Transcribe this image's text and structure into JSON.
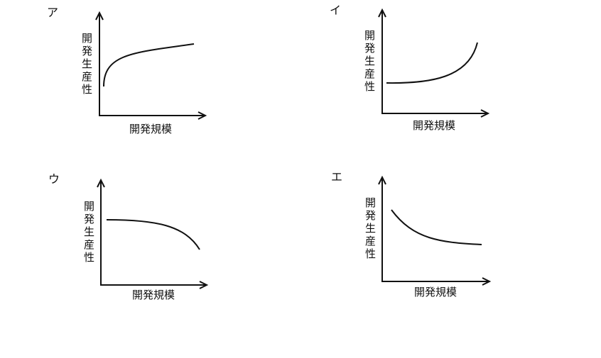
{
  "panels": [
    {
      "label": "ア",
      "y_label": "開発生産性",
      "x_label": "開発規模"
    },
    {
      "label": "イ",
      "y_label": "開発生産性",
      "x_label": "開発規模"
    },
    {
      "label": "ウ",
      "y_label": "開発生産性",
      "x_label": "開発規模"
    },
    {
      "label": "エ",
      "y_label": "開発生産性",
      "x_label": "開発規模"
    }
  ]
}
